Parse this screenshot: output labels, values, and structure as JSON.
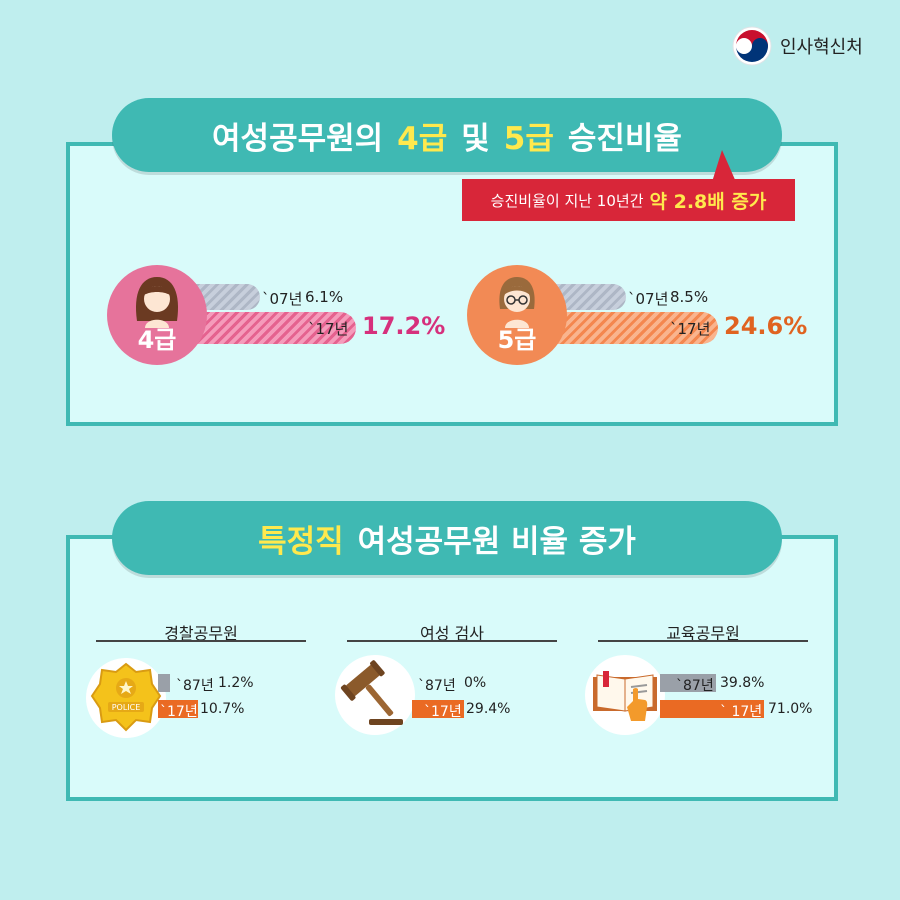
{
  "logo": {
    "text": "인사혁신처"
  },
  "section1": {
    "title_prefix": "여성공무원의",
    "title_hl1": "4급",
    "title_mid": "및",
    "title_hl2": "5급",
    "title_suffix": "승진비율",
    "callout_text": "승진비율이 지난 10년간",
    "callout_highlight": "약 2.8배 증가",
    "grades": [
      {
        "label": "4급",
        "prev_label": "`07년",
        "prev_value_text": "6.1%",
        "cur_label": "`17년",
        "cur_value_text": "17.2%"
      },
      {
        "label": "5급",
        "prev_label": "`07년",
        "prev_value_text": "8.5%",
        "cur_label": "`17년",
        "cur_value_text": "24.6%"
      }
    ]
  },
  "section2": {
    "title_hl": "특정직",
    "title_rest": "여성공무원 비율 증가",
    "categories": [
      {
        "title": "경찰공무원",
        "icon": "police-badge-icon",
        "badge_text": "POLICE",
        "prev_label": "`87년",
        "prev_value_text": "1.2%",
        "cur_label": "`17년",
        "cur_value_text": "10.7%"
      },
      {
        "title": "여성 검사",
        "icon": "gavel-icon",
        "prev_label": "`87년",
        "prev_value_text": "0%",
        "cur_label": "`17년",
        "cur_value_text": "29.4%"
      },
      {
        "title": "교육공무원",
        "icon": "book-icon",
        "prev_label": "`87년",
        "prev_value_text": "39.8%",
        "cur_label": "` 17년",
        "cur_value_text": "71.0%"
      }
    ]
  },
  "colors": {
    "background": "#bfeeee",
    "panel": "#d9fbfa",
    "teal": "#3fb9b3",
    "highlight_yellow": "#ffe94d",
    "callout_red": "#d82639",
    "pink": "#d6307c",
    "orange": "#e06320"
  },
  "chart_data": [
    {
      "type": "bar",
      "title": "여성공무원의 4급 및 5급 승진비율",
      "categories": [
        "4급",
        "5급"
      ],
      "series": [
        {
          "name": "`07년",
          "values": [
            6.1,
            8.5
          ]
        },
        {
          "name": "`17년",
          "values": [
            17.2,
            24.6
          ]
        }
      ]
    },
    {
      "type": "bar",
      "title": "특정직 여성공무원 비율 증가",
      "categories": [
        "경찰공무원",
        "여성 검사",
        "교육공무원"
      ],
      "series": [
        {
          "name": "`87년",
          "values": [
            1.2,
            0,
            39.8
          ]
        },
        {
          "name": "`17년",
          "values": [
            10.7,
            29.4,
            71.0
          ]
        }
      ]
    }
  ]
}
